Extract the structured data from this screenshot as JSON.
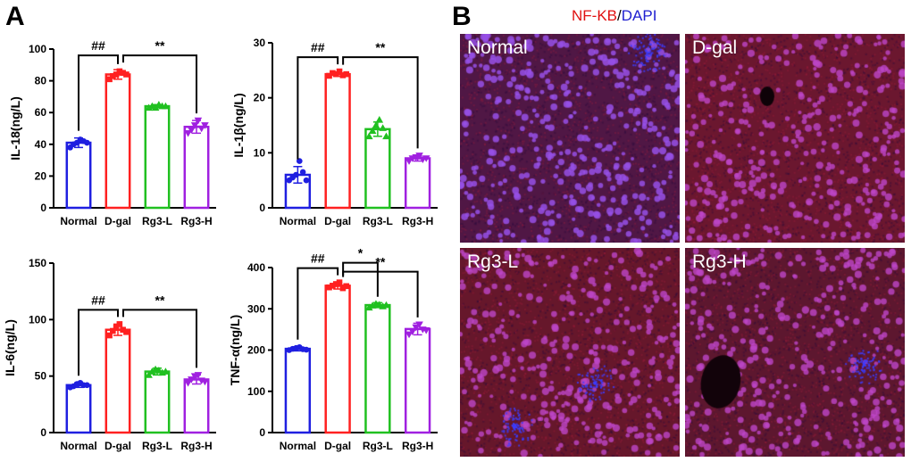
{
  "panel_a_letter": "A",
  "panel_b_letter": "B",
  "panel_b_title": {
    "red": "NF-KB",
    "sep": "/",
    "blue": "DAPI"
  },
  "micrographs": [
    {
      "label": "Normal",
      "tint": "#5a1a4a"
    },
    {
      "label": "D-gal",
      "tint": "#7a1a30"
    },
    {
      "label": "Rg3-L",
      "tint": "#741a2c"
    },
    {
      "label": "Rg3-H",
      "tint": "#6a1a30"
    }
  ],
  "group_colors": [
    "#1f1fe0",
    "#ff2020",
    "#20c020",
    "#a020e0"
  ],
  "chart_data": [
    {
      "type": "bar",
      "ylabel": "IL-18(ng/L)",
      "ylim": [
        0,
        100
      ],
      "yticks": [
        0,
        20,
        40,
        60,
        80,
        100
      ],
      "ytick_labels": [
        "0",
        "20",
        "40",
        "60",
        "80",
        "100"
      ],
      "categories": [
        "Normal",
        "D-gal",
        "Rg3-L",
        "Rg3-H"
      ],
      "values": [
        41,
        84,
        64,
        51
      ],
      "errors": [
        3,
        3,
        1,
        4
      ],
      "points": [
        [
          38,
          40,
          41,
          43,
          42,
          41
        ],
        [
          81,
          83,
          84,
          86,
          85,
          84
        ],
        [
          63,
          64,
          63,
          65,
          64,
          64
        ],
        [
          47,
          49,
          52,
          55,
          50,
          52
        ]
      ],
      "annotations": [
        {
          "text": "##",
          "from": 0,
          "to": 1
        },
        {
          "text": "**",
          "from": 1,
          "to": 3
        }
      ]
    },
    {
      "type": "bar",
      "ylabel": "IL-1β(ng/L)",
      "ylim": [
        0,
        30
      ],
      "yticks": [
        0,
        10,
        20,
        30
      ],
      "ytick_labels": [
        "0",
        "10",
        "20",
        "30"
      ],
      "categories": [
        "Normal",
        "D-gal",
        "Rg3-L",
        "Rg3-H"
      ],
      "values": [
        6,
        24.3,
        14.3,
        9
      ],
      "errors": [
        1.5,
        0.4,
        1.3,
        0.5
      ],
      "points": [
        [
          5,
          5.5,
          6,
          8.5,
          6.5,
          5
        ],
        [
          24,
          24.5,
          24.3,
          24.8,
          24.1,
          24.3
        ],
        [
          13,
          14,
          15,
          16,
          14.5,
          13
        ],
        [
          8.5,
          9,
          9.2,
          9.5,
          8.8,
          9
        ]
      ],
      "annotations": [
        {
          "text": "##",
          "from": 0,
          "to": 1
        },
        {
          "text": "**",
          "from": 1,
          "to": 3
        }
      ]
    },
    {
      "type": "bar",
      "ylabel": "IL-6(ng/L)",
      "ylim": [
        0,
        150
      ],
      "yticks": [
        0,
        50,
        100,
        150
      ],
      "ytick_labels": [
        "0",
        "50",
        "100",
        "150"
      ],
      "categories": [
        "Normal",
        "D-gal",
        "Rg3-L",
        "Rg3-H"
      ],
      "values": [
        42,
        91,
        54,
        47
      ],
      "errors": [
        2,
        5,
        3,
        4
      ],
      "points": [
        [
          40,
          41,
          43,
          44,
          42,
          42
        ],
        [
          86,
          90,
          93,
          96,
          91,
          89
        ],
        [
          51,
          54,
          56,
          55,
          53,
          54
        ],
        [
          44,
          47,
          50,
          51,
          46,
          45
        ]
      ],
      "annotations": [
        {
          "text": "##",
          "from": 0,
          "to": 1
        },
        {
          "text": "**",
          "from": 1,
          "to": 3
        }
      ]
    },
    {
      "type": "bar",
      "ylabel": "TNF-α(ng/L)",
      "ylim": [
        0,
        400
      ],
      "yticks": [
        0,
        100,
        200,
        300,
        400
      ],
      "ytick_labels": [
        "0",
        "100",
        "200",
        "300",
        "400"
      ],
      "categories": [
        "Normal",
        "D-gal",
        "Rg3-L",
        "Rg3-H"
      ],
      "values": [
        203,
        356,
        309,
        251
      ],
      "errors": [
        5,
        8,
        6,
        14
      ],
      "points": [
        [
          200,
          203,
          205,
          207,
          202,
          201
        ],
        [
          352,
          356,
          360,
          364,
          350,
          355
        ],
        [
          303,
          308,
          312,
          310,
          306,
          309
        ],
        [
          238,
          245,
          255,
          262,
          250,
          248
        ]
      ],
      "annotations": [
        {
          "text": "##",
          "from": 0,
          "to": 1
        },
        {
          "text": "*",
          "from": 1,
          "to": 2
        },
        {
          "text": "**",
          "from": 1,
          "to": 3
        }
      ]
    }
  ]
}
